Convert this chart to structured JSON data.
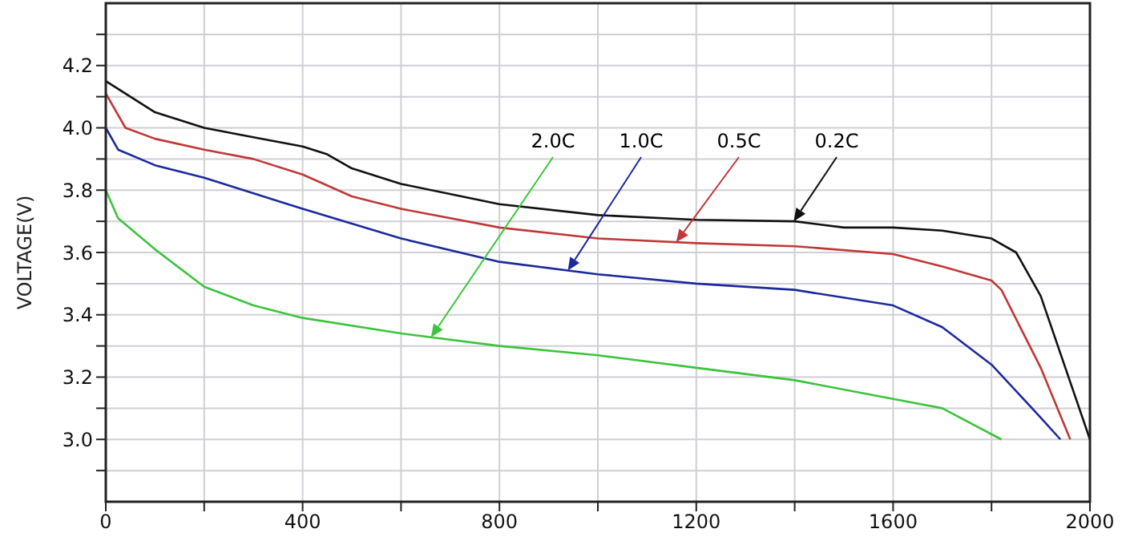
{
  "chart_data": {
    "type": "line",
    "ylabel": "VOLTAGE(V)",
    "xlim": [
      0,
      2000
    ],
    "ylim": [
      2.8,
      4.4
    ],
    "xticks": [
      0,
      {
        "value": 200,
        "label": null
      },
      400,
      {
        "value": 600,
        "label": null
      },
      800,
      {
        "value": 1000,
        "label": null
      },
      1200,
      {
        "value": 1400,
        "label": null
      },
      1600,
      {
        "value": 1800,
        "label": null
      },
      2000
    ],
    "yticks": [
      {
        "value": 2.9,
        "label": null
      },
      {
        "value": 3,
        "label": "3.0"
      },
      {
        "value": 3.1,
        "label": null
      },
      3.2,
      {
        "value": 3.3,
        "label": null
      },
      3.4,
      {
        "value": 3.5,
        "label": null
      },
      3.6,
      {
        "value": 3.7,
        "label": null
      },
      3.8,
      {
        "value": 3.9,
        "label": null
      },
      {
        "value": 4,
        "label": "4.0"
      },
      {
        "value": 4.1,
        "label": null
      },
      4.2,
      {
        "value": 4.3,
        "label": null
      }
    ],
    "grid": true,
    "marker": "none",
    "line_style": "solid",
    "series": [
      {
        "color": "#111111",
        "x": [
          0,
          100,
          200,
          300,
          400,
          450,
          500,
          600,
          800,
          1000,
          1200,
          1400,
          1500,
          1600,
          1700,
          1800,
          1850,
          1900,
          1950,
          2000
        ],
        "values": [
          4.15,
          4.05,
          4.0,
          3.97,
          3.94,
          3.915,
          3.87,
          3.82,
          3.755,
          3.72,
          3.705,
          3.7,
          3.68,
          3.68,
          3.67,
          3.645,
          3.6,
          3.46,
          3.23,
          3.0
        ]
      },
      {
        "color": "#c03838",
        "x": [
          0,
          40,
          100,
          200,
          300,
          400,
          500,
          600,
          800,
          1000,
          1200,
          1400,
          1600,
          1700,
          1800,
          1820,
          1900,
          1960
        ],
        "values": [
          4.11,
          4.0,
          3.965,
          3.93,
          3.9,
          3.85,
          3.78,
          3.74,
          3.68,
          3.645,
          3.63,
          3.62,
          3.595,
          3.555,
          3.51,
          3.48,
          3.23,
          3.0
        ]
      },
      {
        "color": "#1c2a9c",
        "x": [
          0,
          25,
          100,
          200,
          400,
          600,
          800,
          1000,
          1200,
          1400,
          1600,
          1700,
          1800,
          1900,
          1940
        ],
        "values": [
          4.0,
          3.93,
          3.88,
          3.84,
          3.74,
          3.645,
          3.57,
          3.53,
          3.5,
          3.48,
          3.43,
          3.36,
          3.24,
          3.07,
          3.0
        ]
      },
      {
        "color": "#3cc43c",
        "x": [
          0,
          25,
          100,
          200,
          300,
          400,
          600,
          800,
          1000,
          1200,
          1400,
          1600,
          1700,
          1820
        ],
        "values": [
          3.8,
          3.71,
          3.61,
          3.49,
          3.43,
          3.39,
          3.34,
          3.3,
          3.27,
          3.23,
          3.19,
          3.13,
          3.1,
          3.0
        ]
      }
    ],
    "annotations": [
      {
        "text": "2.0C",
        "x": 661,
        "y": 3.328
      },
      {
        "text": "1.0C",
        "x": 939,
        "y": 3.542
      },
      {
        "text": "0.5C",
        "x": 1159,
        "y": 3.633
      },
      {
        "text": "0.2C",
        "x": 1398,
        "y": 3.7
      }
    ]
  }
}
